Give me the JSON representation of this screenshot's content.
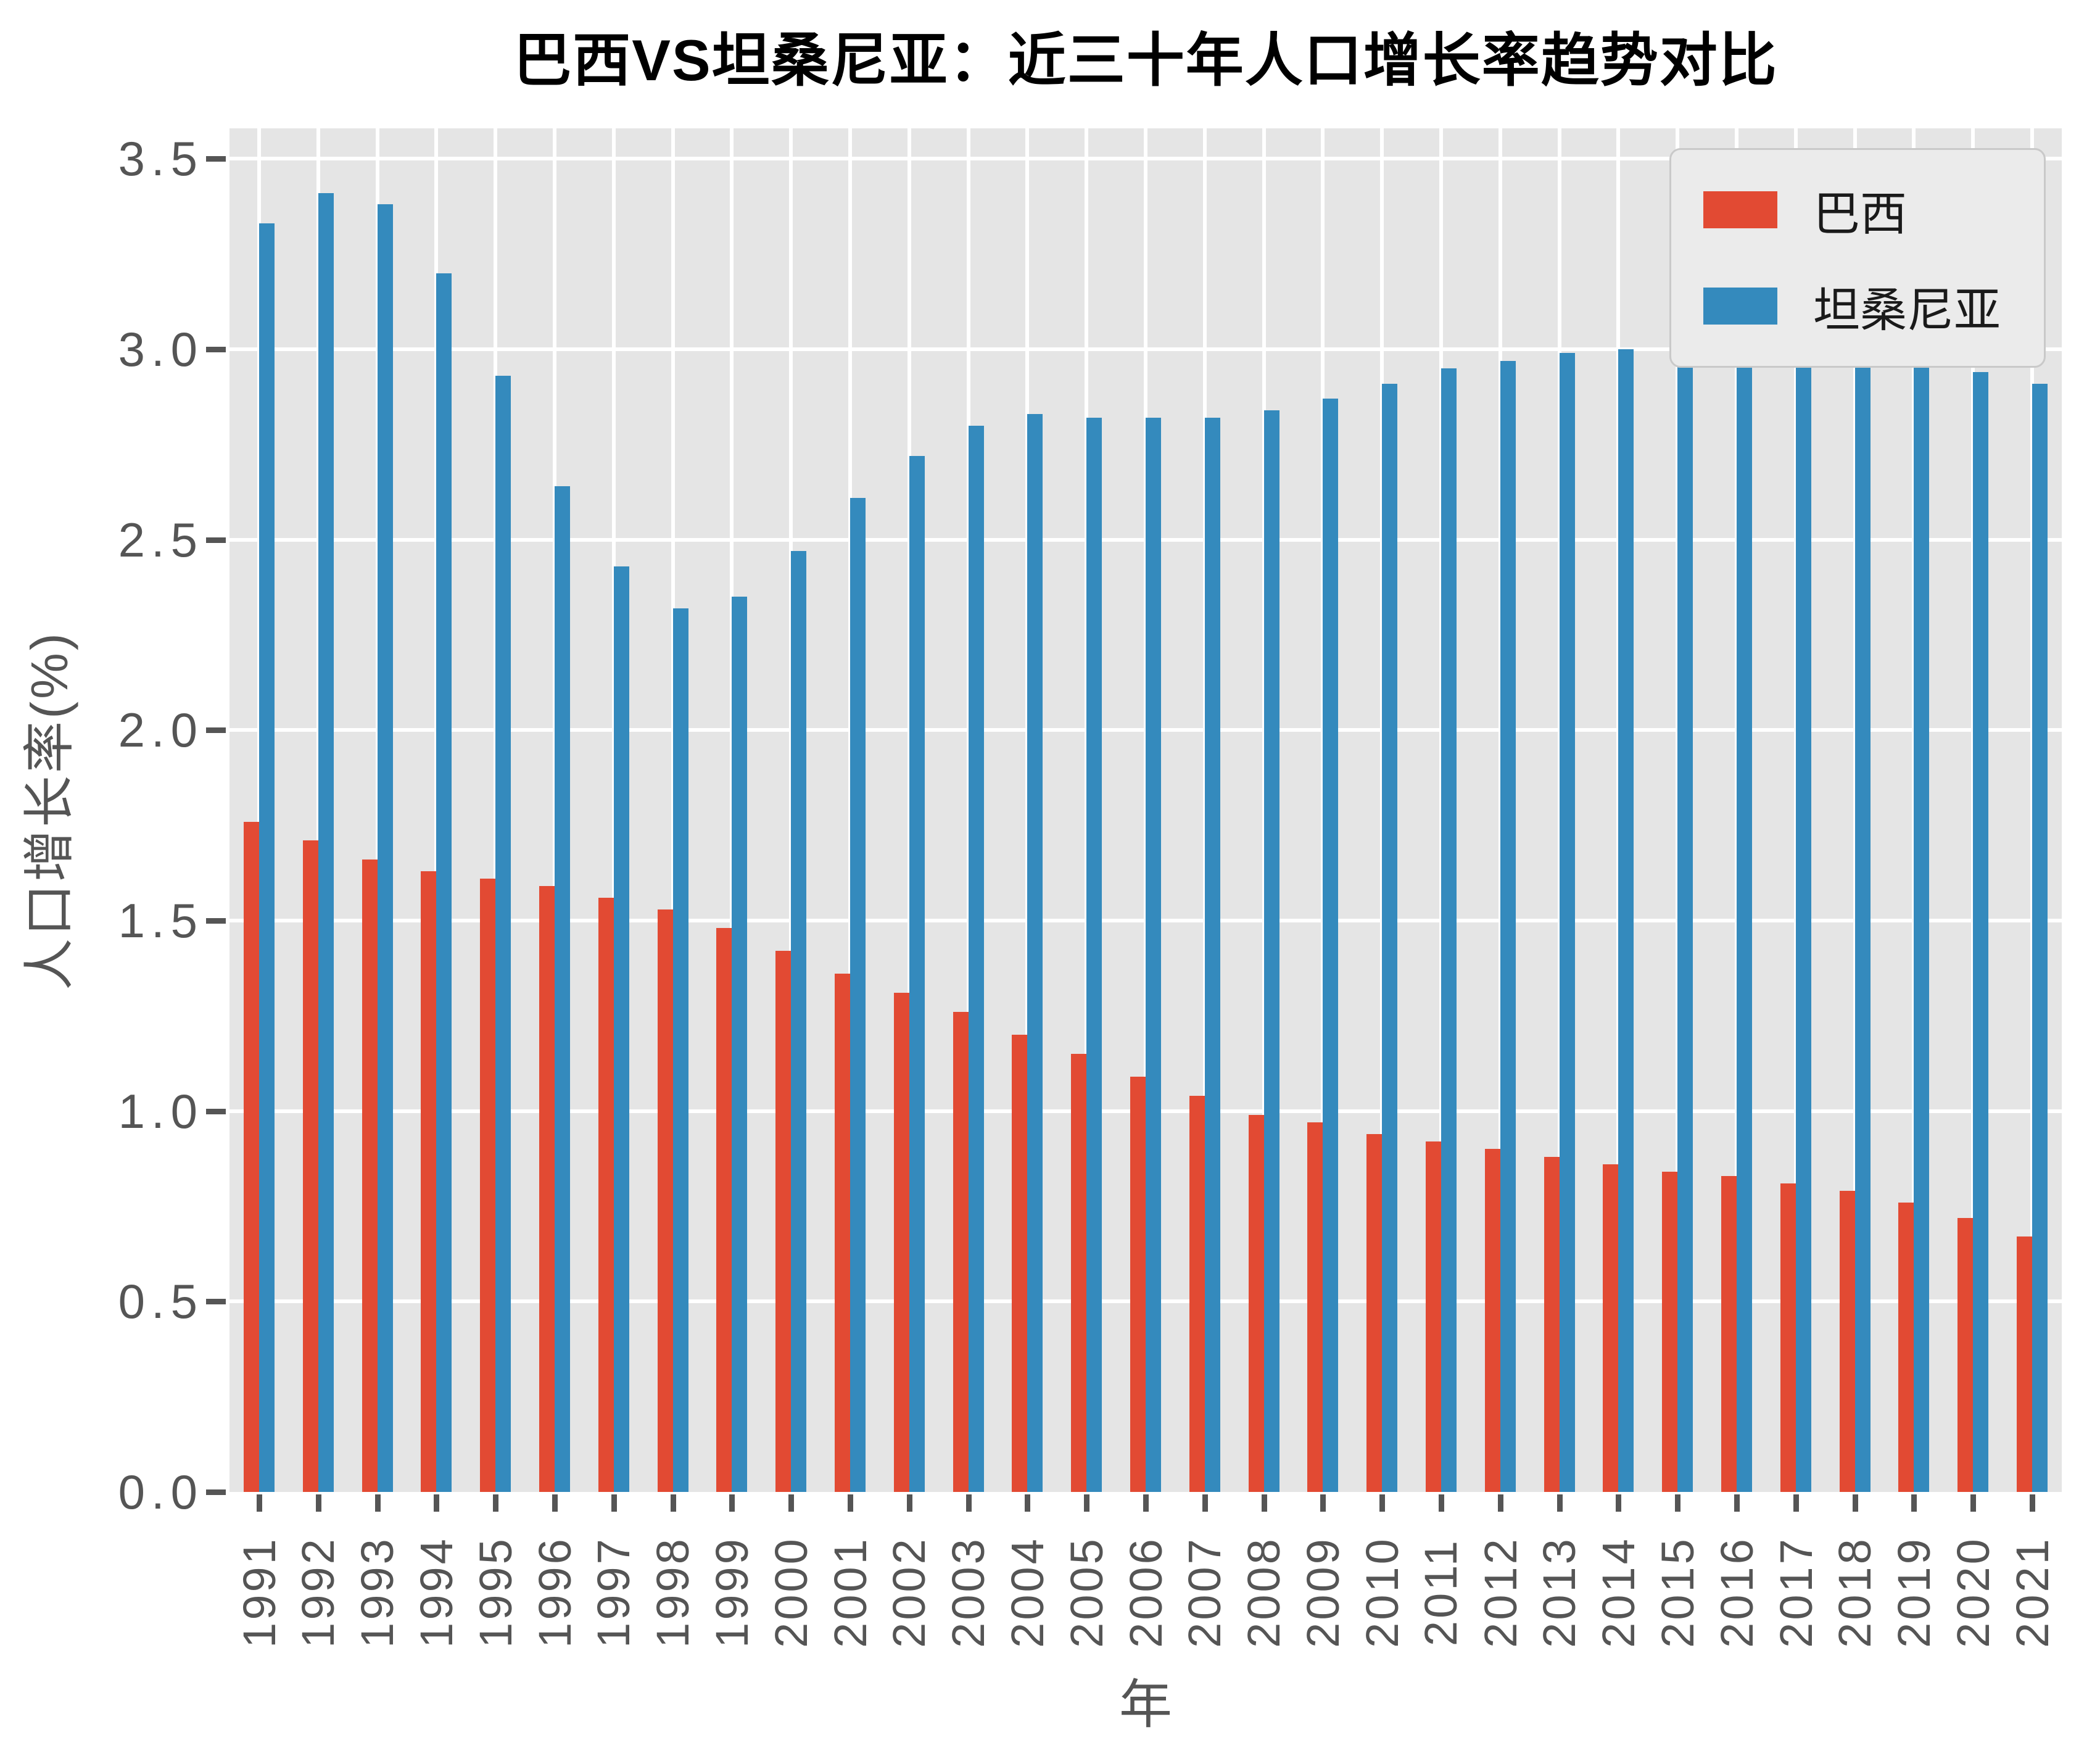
{
  "title": "巴西VS坦桑尼亚：近三十年人口增长率趋势对比",
  "chart_data": {
    "type": "bar",
    "title": "巴西VS坦桑尼亚：近三十年人口增长率趋势对比",
    "xlabel": "年",
    "ylabel": "人口增长率(%)",
    "categories": [
      "1991",
      "1992",
      "1993",
      "1994",
      "1995",
      "1996",
      "1997",
      "1998",
      "1999",
      "2000",
      "2001",
      "2002",
      "2003",
      "2004",
      "2005",
      "2006",
      "2007",
      "2008",
      "2009",
      "2010",
      "2011",
      "2012",
      "2013",
      "2014",
      "2015",
      "2016",
      "2017",
      "2018",
      "2019",
      "2020",
      "2021"
    ],
    "series": [
      {
        "name": "巴西",
        "color": "#e24a33",
        "values": [
          1.76,
          1.71,
          1.66,
          1.63,
          1.61,
          1.59,
          1.56,
          1.53,
          1.48,
          1.42,
          1.36,
          1.31,
          1.26,
          1.2,
          1.15,
          1.09,
          1.04,
          0.99,
          0.97,
          0.94,
          0.92,
          0.9,
          0.88,
          0.86,
          0.84,
          0.83,
          0.81,
          0.79,
          0.76,
          0.72,
          0.67
        ]
      },
      {
        "name": "坦桑尼亚",
        "color": "#348abd",
        "values": [
          3.33,
          3.41,
          3.38,
          3.2,
          2.93,
          2.64,
          2.43,
          2.32,
          2.35,
          2.47,
          2.61,
          2.72,
          2.8,
          2.83,
          2.82,
          2.82,
          2.82,
          2.84,
          2.87,
          2.91,
          2.95,
          2.97,
          2.99,
          3.0,
          3.0,
          3.0,
          2.99,
          2.98,
          2.96,
          2.94,
          2.91
        ]
      }
    ],
    "ylim": [
      0,
      3.58
    ],
    "yticks": [
      0.0,
      0.5,
      1.0,
      1.5,
      2.0,
      2.5,
      3.0,
      3.5
    ],
    "grid": true,
    "legend_position": "upper right",
    "plot_background": "#e5e5e5",
    "grid_color": "#ffffff",
    "tick_color": "#555555"
  }
}
